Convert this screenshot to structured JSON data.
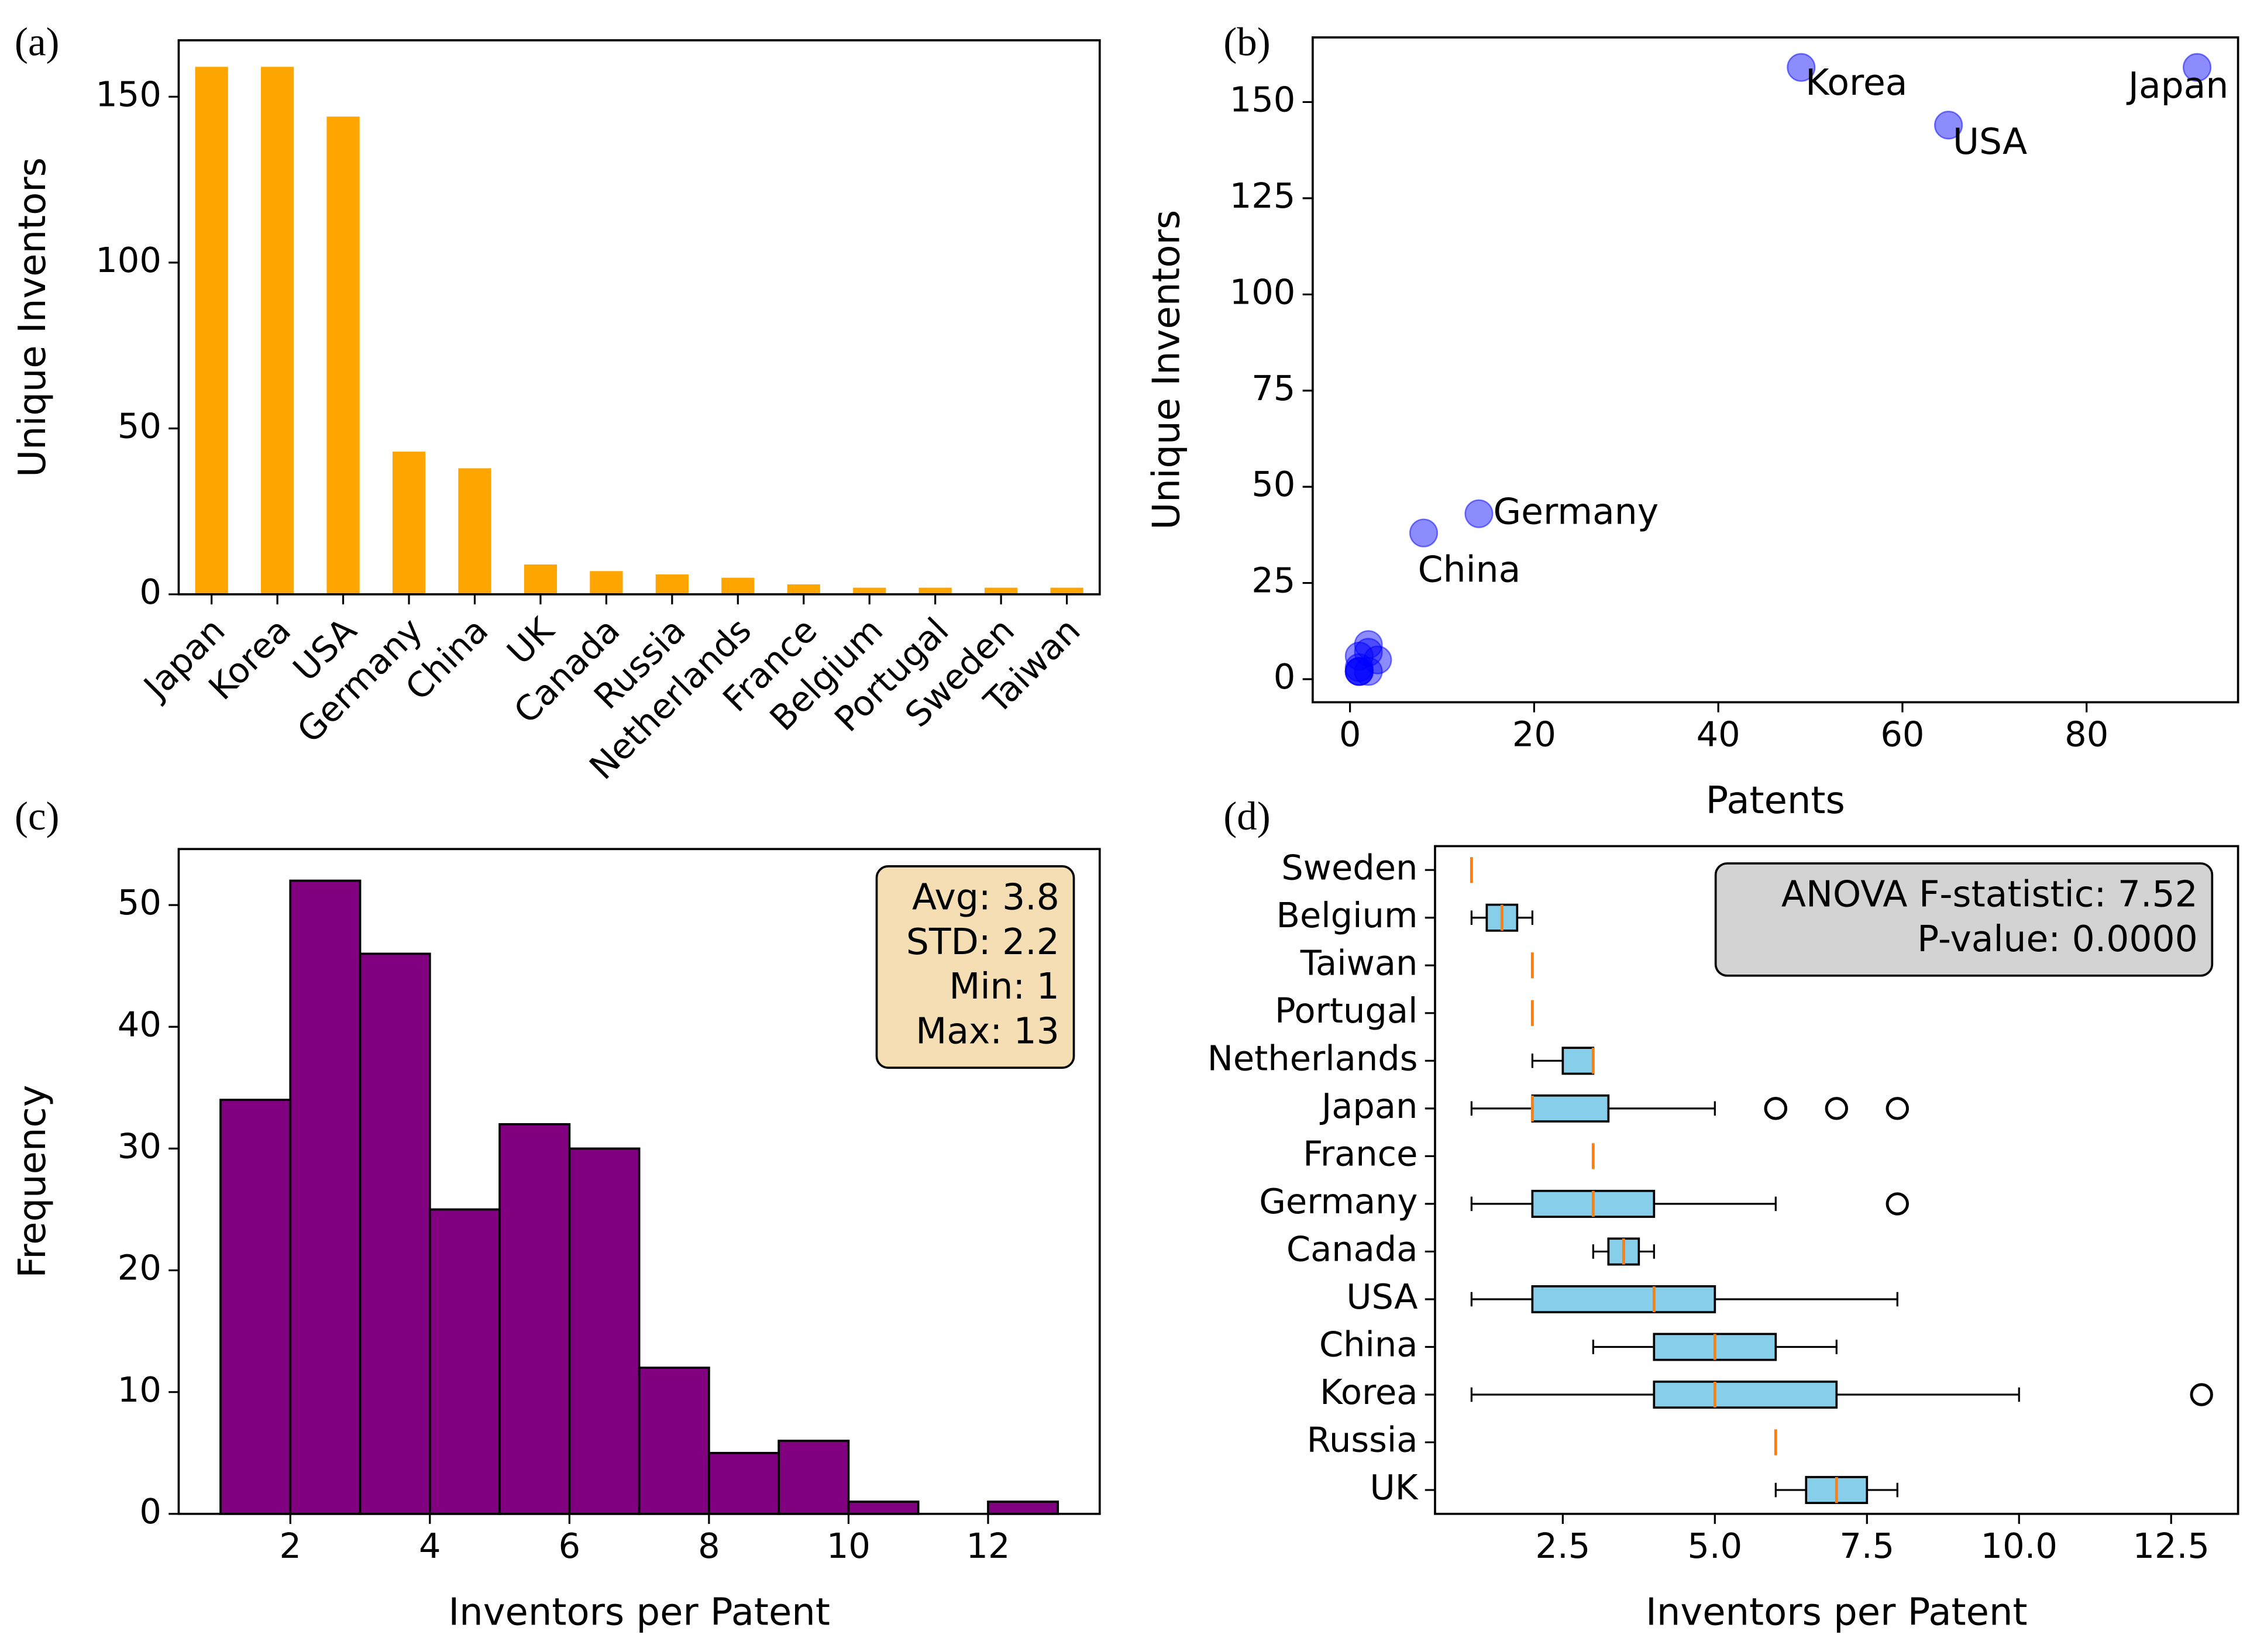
{
  "chart_data": [
    {
      "type": "bar",
      "panel_label": "(a)",
      "ylabel": "Unique Inventors",
      "color": "#ffa500",
      "categories": [
        "Japan",
        "Korea",
        "USA",
        "Germany",
        "China",
        "UK",
        "Canada",
        "Russia",
        "Netherlands",
        "France",
        "Belgium",
        "Portugal",
        "Sweden",
        "Taiwan"
      ],
      "values": [
        159,
        159,
        144,
        43,
        38,
        9,
        7,
        6,
        5,
        3,
        2,
        2,
        2,
        2
      ],
      "ylim": [
        0,
        167
      ],
      "yticks": [
        0,
        50,
        100,
        150
      ]
    },
    {
      "type": "scatter",
      "panel_label": "(b)",
      "xlabel": "Patents",
      "ylabel": "Unique Inventors",
      "color": "#0000ff",
      "point_labels": [
        "Japan",
        "Korea",
        "USA",
        "Germany",
        "China",
        null,
        null,
        null,
        null,
        null,
        null,
        null,
        null,
        null
      ],
      "x": [
        92,
        49,
        65,
        14,
        8,
        2,
        2,
        1,
        3,
        1,
        2,
        1,
        1,
        1
      ],
      "values": [
        159,
        159,
        144,
        43,
        38,
        9,
        7,
        6,
        5,
        3,
        2,
        2,
        2,
        2
      ],
      "xlim": [
        -4.05,
        96.45
      ],
      "ylim": [
        -6,
        166.8
      ],
      "xticks": [
        0,
        20,
        40,
        60,
        80
      ],
      "yticks": [
        0,
        25,
        50,
        75,
        100,
        125,
        150
      ]
    },
    {
      "type": "histogram",
      "panel_label": "(c)",
      "xlabel": "Inventors per Patent",
      "ylabel": "Frequency",
      "color": "#800080",
      "bins": [
        1,
        2,
        3,
        4,
        5,
        6,
        7,
        8,
        9,
        10,
        11,
        12,
        13
      ],
      "values": [
        34,
        52,
        46,
        25,
        32,
        30,
        12,
        5,
        6,
        1,
        0,
        1
      ],
      "xlim": [
        0.4,
        13.6
      ],
      "ylim": [
        0,
        54.6
      ],
      "xticks": [
        2,
        4,
        6,
        8,
        10,
        12
      ],
      "yticks": [
        0,
        10,
        20,
        30,
        40,
        50
      ],
      "annotation": [
        "Avg: 3.8",
        "STD: 2.2",
        "Min: 1",
        "Max: 13"
      ],
      "annotation_color": "#f5deb3"
    },
    {
      "type": "boxplot",
      "panel_label": "(d)",
      "xlabel": "Inventors per Patent",
      "color": "#87ceeb",
      "median_color": "#ff7f0e",
      "categories": [
        "UK",
        "Russia",
        "Korea",
        "China",
        "USA",
        "Canada",
        "Germany",
        "France",
        "Japan",
        "Netherlands",
        "Portugal",
        "Taiwan",
        "Belgium",
        "Sweden"
      ],
      "boxes": [
        {
          "whislo": 6,
          "q1": 6.5,
          "med": 7,
          "q3": 7.5,
          "whishi": 8,
          "fliers": []
        },
        {
          "whislo": 6,
          "q1": 6,
          "med": 6,
          "q3": 6,
          "whishi": 6,
          "fliers": []
        },
        {
          "whislo": 1,
          "q1": 4,
          "med": 5,
          "q3": 7,
          "whishi": 10,
          "fliers": [
            13
          ]
        },
        {
          "whislo": 3,
          "q1": 4,
          "med": 5,
          "q3": 6,
          "whishi": 7,
          "fliers": []
        },
        {
          "whislo": 1,
          "q1": 2,
          "med": 4,
          "q3": 5,
          "whishi": 8,
          "fliers": []
        },
        {
          "whislo": 3,
          "q1": 3.25,
          "med": 3.5,
          "q3": 3.75,
          "whishi": 4,
          "fliers": []
        },
        {
          "whislo": 1,
          "q1": 2,
          "med": 3,
          "q3": 4,
          "whishi": 6,
          "fliers": [
            8
          ]
        },
        {
          "whislo": 3,
          "q1": 3,
          "med": 3,
          "q3": 3,
          "whishi": 3,
          "fliers": []
        },
        {
          "whislo": 1,
          "q1": 2,
          "med": 2,
          "q3": 3.25,
          "whishi": 5,
          "fliers": [
            6,
            6,
            7,
            8
          ]
        },
        {
          "whislo": 2,
          "q1": 2.5,
          "med": 3,
          "q3": 3,
          "whishi": 3,
          "fliers": []
        },
        {
          "whislo": 2,
          "q1": 2,
          "med": 2,
          "q3": 2,
          "whishi": 2,
          "fliers": []
        },
        {
          "whislo": 2,
          "q1": 2,
          "med": 2,
          "q3": 2,
          "whishi": 2,
          "fliers": []
        },
        {
          "whislo": 1,
          "q1": 1.25,
          "med": 1.5,
          "q3": 1.75,
          "whishi": 2,
          "fliers": []
        },
        {
          "whislo": 1,
          "q1": 1,
          "med": 1,
          "q3": 1,
          "whishi": 1,
          "fliers": []
        }
      ],
      "xlim": [
        0.4,
        13.6
      ],
      "ylim": [
        0.5,
        14.5
      ],
      "xticks": [
        2.5,
        {
          "value": 5,
          "label": "5.0"
        },
        7.5,
        {
          "value": 10,
          "label": "10.0"
        },
        12.5
      ],
      "annotation": [
        "ANOVA F-statistic: 7.52",
        "P-value: 0.0000"
      ],
      "annotation_color": "#d3d3d3"
    }
  ]
}
